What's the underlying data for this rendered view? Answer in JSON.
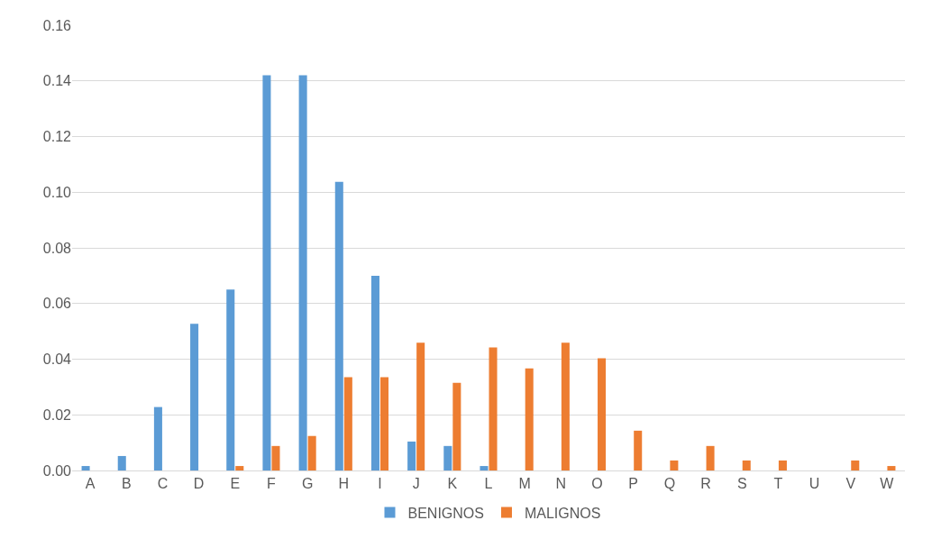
{
  "chart_data": {
    "type": "bar",
    "categories": [
      "A",
      "B",
      "C",
      "D",
      "E",
      "F",
      "G",
      "H",
      "I",
      "J",
      "K",
      "L",
      "M",
      "N",
      "O",
      "P",
      "Q",
      "R",
      "S",
      "T",
      "U",
      "V",
      "W"
    ],
    "series": [
      {
        "name": "BENIGNOS",
        "color": "#5b9bd5",
        "values": [
          0.0016,
          0.0052,
          0.0228,
          0.0527,
          0.065,
          0.142,
          0.142,
          0.1037,
          0.07,
          0.0104,
          0.0088,
          0.0016,
          0,
          0,
          0,
          0,
          0,
          0,
          0,
          0,
          0,
          0,
          0
        ]
      },
      {
        "name": "MALIGNOS",
        "color": "#ed7d31",
        "values": [
          0,
          0,
          0,
          0,
          0.0016,
          0.0088,
          0.0124,
          0.0335,
          0.0335,
          0.0459,
          0.0315,
          0.0442,
          0.0367,
          0.0459,
          0.0403,
          0.0143,
          0.0036,
          0.0088,
          0.0036,
          0.0036,
          0,
          0.0036,
          0.0016
        ]
      }
    ],
    "ylim": [
      0,
      0.16
    ],
    "yticks": [
      {
        "value": 0,
        "label": "0.00"
      },
      {
        "value": 0.02,
        "label": "0.02"
      },
      {
        "value": 0.04,
        "label": "0.04"
      },
      {
        "value": 0.06,
        "label": "0.06"
      },
      {
        "value": 0.08,
        "label": "0.08"
      },
      {
        "value": 0.1,
        "label": "0.10"
      },
      {
        "value": 0.12,
        "label": "0.12"
      },
      {
        "value": 0.14,
        "label": "0.14"
      },
      {
        "value": 0.16,
        "label": "0.16"
      }
    ],
    "grid": "y",
    "legend": "bottom"
  }
}
